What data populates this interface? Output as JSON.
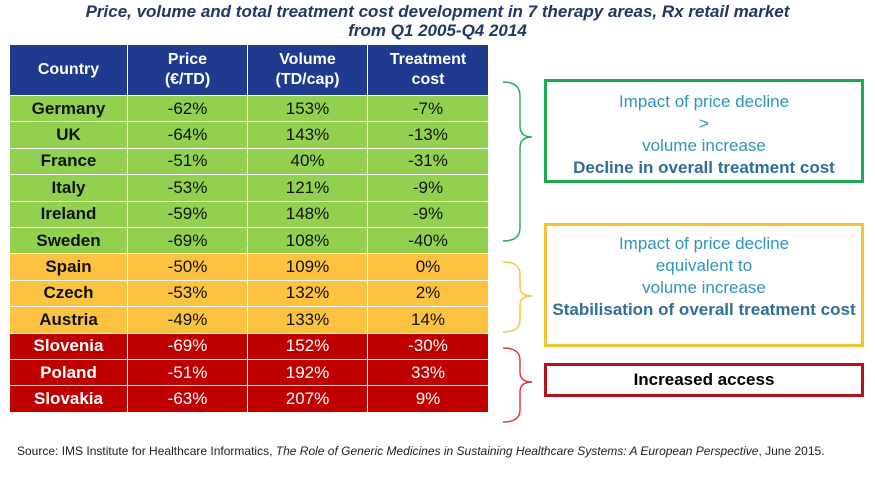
{
  "title_line1": "Price, volume and total treatment cost development in 7 therapy areas, Rx retail market",
  "title_line2": "from Q1 2005-Q4 2014",
  "headers": {
    "country": "Country",
    "price_1": "Price",
    "price_2": "(€/TD)",
    "volume_1": "Volume",
    "volume_2": "(TD/cap)",
    "cost_1": "Treatment",
    "cost_2": "cost"
  },
  "rows": [
    {
      "country": "Germany",
      "price": "-62%",
      "volume": "153%",
      "cost": "-7%",
      "group": "green"
    },
    {
      "country": "UK",
      "price": "-64%",
      "volume": "143%",
      "cost": "-13%",
      "group": "green"
    },
    {
      "country": "France",
      "price": "-51%",
      "volume": "40%",
      "cost": "-31%",
      "group": "green"
    },
    {
      "country": "Italy",
      "price": "-53%",
      "volume": "121%",
      "cost": "-9%",
      "group": "green"
    },
    {
      "country": "Ireland",
      "price": "-59%",
      "volume": "148%",
      "cost": "-9%",
      "group": "green"
    },
    {
      "country": "Sweden",
      "price": "-69%",
      "volume": "108%",
      "cost": "-40%",
      "group": "green"
    },
    {
      "country": "Spain",
      "price": "-50%",
      "volume": "109%",
      "cost": "0%",
      "group": "yellow"
    },
    {
      "country": "Czech",
      "price": "-53%",
      "volume": "132%",
      "cost": "2%",
      "group": "yellow"
    },
    {
      "country": "Austria",
      "price": "-49%",
      "volume": "133%",
      "cost": "14%",
      "group": "yellow"
    },
    {
      "country": "Slovenia",
      "price": "-69%",
      "volume": "152%",
      "cost": "-30%",
      "group": "red"
    },
    {
      "country": "Poland",
      "price": "-51%",
      "volume": "192%",
      "cost": "33%",
      "group": "red"
    },
    {
      "country": "Slovakia",
      "price": "-63%",
      "volume": "207%",
      "cost": "9%",
      "group": "red"
    }
  ],
  "boxes": {
    "green": {
      "line1": "Impact of price decline",
      "line2": ">",
      "line3": "volume increase",
      "bold": "Decline in overall treatment cost"
    },
    "yellow": {
      "line1": "Impact of price decline",
      "line2": "equivalent to",
      "line3": "volume increase",
      "bold": "Stabilisation of overall treatment cost"
    },
    "red": {
      "text": "Increased access"
    }
  },
  "colors": {
    "green": "#92d050",
    "yellow": "#fcc240",
    "red": "#c00000",
    "header": "#1f3b8f"
  },
  "source": {
    "prefix": "Source:  IMS Institute for Healthcare Informatics, ",
    "italic": "The Role of Generic Medicines in Sustaining Healthcare Systems: A European Perspective",
    "suffix": ", June 2015."
  }
}
